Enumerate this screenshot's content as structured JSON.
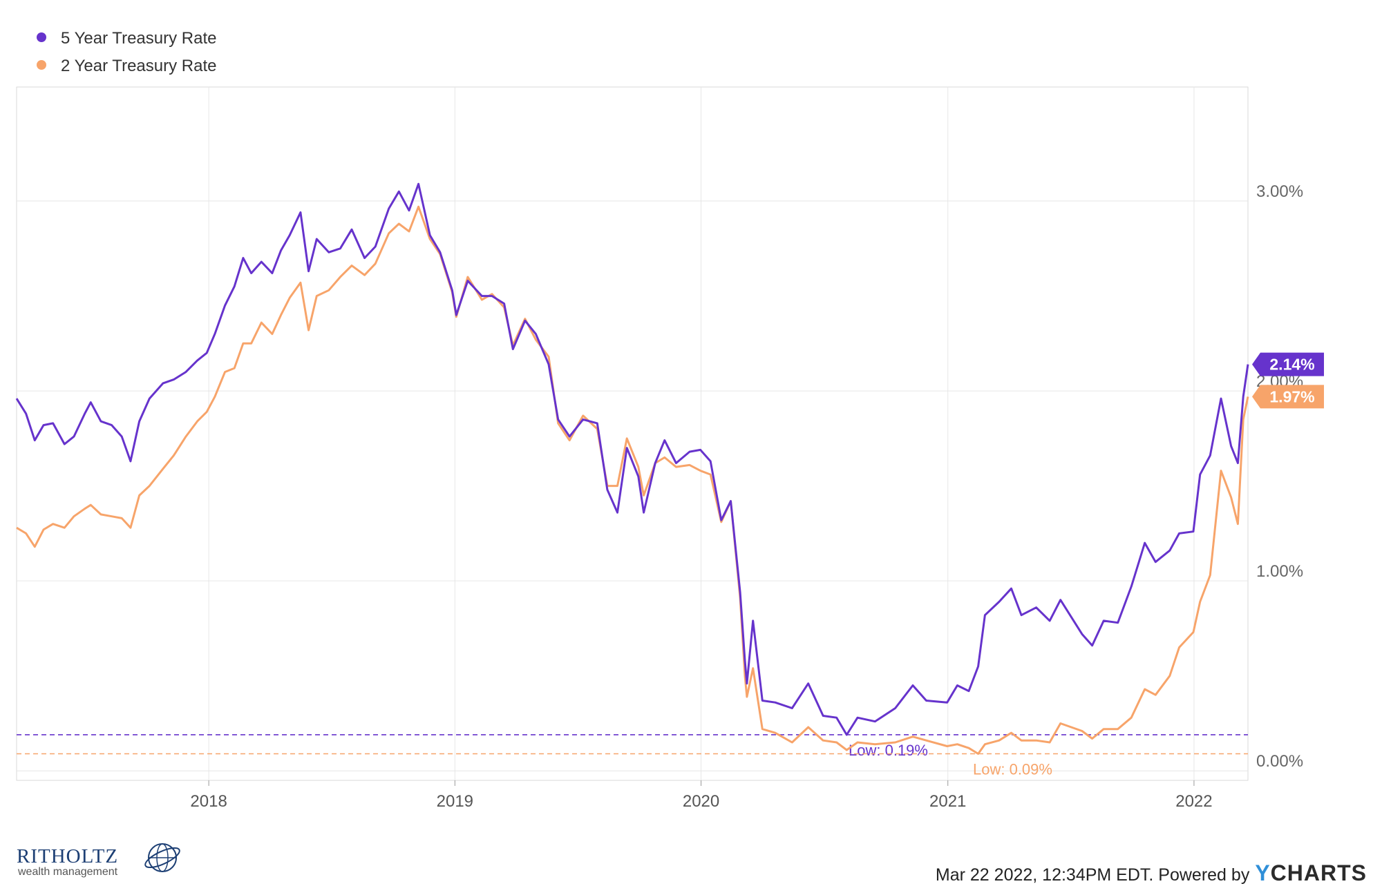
{
  "chart_data": {
    "type": "line",
    "legend_position": "top-left",
    "grid": true,
    "xlim": [
      "2017-03-22",
      "2022-03-22"
    ],
    "ylim": [
      -0.05,
      3.6
    ],
    "y_ticks": [
      {
        "value": 0,
        "label": "0.00%"
      },
      {
        "value": 1,
        "label": "1.00%"
      },
      {
        "value": 2,
        "label": "2.00%"
      },
      {
        "value": 3,
        "label": "3.00%"
      }
    ],
    "x_ticks": [
      {
        "value": "2018-01-01",
        "label": "2018"
      },
      {
        "value": "2019-01-01",
        "label": "2019"
      },
      {
        "value": "2020-01-01",
        "label": "2020"
      },
      {
        "value": "2021-01-01",
        "label": "2021"
      },
      {
        "value": "2022-01-01",
        "label": "2022"
      }
    ],
    "series": [
      {
        "name": "5 Year Treasury Rate",
        "color": "#6633cc",
        "last_value": 2.14,
        "last_label": "2.14%",
        "low_value": 0.19,
        "low_label": "Low: 0.19%",
        "points": [
          [
            "2017-03-22",
            1.96
          ],
          [
            "2017-04-05",
            1.88
          ],
          [
            "2017-04-18",
            1.74
          ],
          [
            "2017-05-01",
            1.82
          ],
          [
            "2017-05-15",
            1.83
          ],
          [
            "2017-06-01",
            1.72
          ],
          [
            "2017-06-15",
            1.76
          ],
          [
            "2017-07-01",
            1.88
          ],
          [
            "2017-07-10",
            1.94
          ],
          [
            "2017-07-25",
            1.84
          ],
          [
            "2017-08-10",
            1.82
          ],
          [
            "2017-08-25",
            1.76
          ],
          [
            "2017-09-07",
            1.63
          ],
          [
            "2017-09-20",
            1.84
          ],
          [
            "2017-10-05",
            1.96
          ],
          [
            "2017-10-25",
            2.04
          ],
          [
            "2017-11-10",
            2.06
          ],
          [
            "2017-11-28",
            2.1
          ],
          [
            "2017-12-15",
            2.16
          ],
          [
            "2017-12-29",
            2.2
          ],
          [
            "2018-01-10",
            2.3
          ],
          [
            "2018-01-25",
            2.45
          ],
          [
            "2018-02-08",
            2.55
          ],
          [
            "2018-02-21",
            2.7
          ],
          [
            "2018-03-05",
            2.62
          ],
          [
            "2018-03-20",
            2.68
          ],
          [
            "2018-04-05",
            2.62
          ],
          [
            "2018-04-18",
            2.74
          ],
          [
            "2018-05-01",
            2.82
          ],
          [
            "2018-05-17",
            2.94
          ],
          [
            "2018-05-29",
            2.63
          ],
          [
            "2018-06-10",
            2.8
          ],
          [
            "2018-06-28",
            2.73
          ],
          [
            "2018-07-15",
            2.75
          ],
          [
            "2018-08-01",
            2.85
          ],
          [
            "2018-08-20",
            2.7
          ],
          [
            "2018-09-05",
            2.76
          ],
          [
            "2018-09-25",
            2.96
          ],
          [
            "2018-10-10",
            3.05
          ],
          [
            "2018-10-25",
            2.95
          ],
          [
            "2018-11-08",
            3.09
          ],
          [
            "2018-11-25",
            2.82
          ],
          [
            "2018-12-10",
            2.73
          ],
          [
            "2018-12-28",
            2.53
          ],
          [
            "2019-01-03",
            2.4
          ],
          [
            "2019-01-20",
            2.58
          ],
          [
            "2019-02-10",
            2.5
          ],
          [
            "2019-02-25",
            2.5
          ],
          [
            "2019-03-15",
            2.46
          ],
          [
            "2019-03-28",
            2.22
          ],
          [
            "2019-04-15",
            2.37
          ],
          [
            "2019-05-01",
            2.3
          ],
          [
            "2019-05-20",
            2.14
          ],
          [
            "2019-06-03",
            1.85
          ],
          [
            "2019-06-20",
            1.76
          ],
          [
            "2019-07-10",
            1.85
          ],
          [
            "2019-07-31",
            1.83
          ],
          [
            "2019-08-15",
            1.48
          ],
          [
            "2019-08-30",
            1.36
          ],
          [
            "2019-09-13",
            1.7
          ],
          [
            "2019-09-30",
            1.55
          ],
          [
            "2019-10-08",
            1.36
          ],
          [
            "2019-10-25",
            1.62
          ],
          [
            "2019-11-08",
            1.74
          ],
          [
            "2019-11-25",
            1.62
          ],
          [
            "2019-12-15",
            1.68
          ],
          [
            "2019-12-31",
            1.69
          ],
          [
            "2020-01-15",
            1.63
          ],
          [
            "2020-01-31",
            1.32
          ],
          [
            "2020-02-14",
            1.42
          ],
          [
            "2020-02-28",
            0.94
          ],
          [
            "2020-03-06",
            0.58
          ],
          [
            "2020-03-09",
            0.46
          ],
          [
            "2020-03-18",
            0.79
          ],
          [
            "2020-04-01",
            0.37
          ],
          [
            "2020-04-20",
            0.36
          ],
          [
            "2020-05-15",
            0.33
          ],
          [
            "2020-06-08",
            0.46
          ],
          [
            "2020-06-30",
            0.29
          ],
          [
            "2020-07-20",
            0.28
          ],
          [
            "2020-08-04",
            0.19
          ],
          [
            "2020-08-20",
            0.28
          ],
          [
            "2020-09-15",
            0.26
          ],
          [
            "2020-10-15",
            0.33
          ],
          [
            "2020-11-10",
            0.45
          ],
          [
            "2020-11-30",
            0.37
          ],
          [
            "2020-12-31",
            0.36
          ],
          [
            "2021-01-15",
            0.45
          ],
          [
            "2021-02-01",
            0.42
          ],
          [
            "2021-02-15",
            0.55
          ],
          [
            "2021-02-25",
            0.82
          ],
          [
            "2021-03-18",
            0.89
          ],
          [
            "2021-04-05",
            0.96
          ],
          [
            "2021-04-20",
            0.82
          ],
          [
            "2021-05-12",
            0.86
          ],
          [
            "2021-06-01",
            0.79
          ],
          [
            "2021-06-17",
            0.9
          ],
          [
            "2021-07-19",
            0.72
          ],
          [
            "2021-08-03",
            0.66
          ],
          [
            "2021-08-20",
            0.79
          ],
          [
            "2021-09-10",
            0.78
          ],
          [
            "2021-09-30",
            0.97
          ],
          [
            "2021-10-20",
            1.2
          ],
          [
            "2021-11-05",
            1.1
          ],
          [
            "2021-11-26",
            1.16
          ],
          [
            "2021-12-10",
            1.25
          ],
          [
            "2021-12-31",
            1.26
          ],
          [
            "2022-01-10",
            1.56
          ],
          [
            "2022-01-25",
            1.66
          ],
          [
            "2022-02-10",
            1.96
          ],
          [
            "2022-02-25",
            1.71
          ],
          [
            "2022-03-07",
            1.62
          ],
          [
            "2022-03-15",
            1.97
          ],
          [
            "2022-03-22",
            2.14
          ]
        ]
      },
      {
        "name": "2 Year Treasury Rate",
        "color": "#f7a46a",
        "last_value": 1.97,
        "last_label": "1.97%",
        "low_value": 0.09,
        "low_label": "Low: 0.09%",
        "points": [
          [
            "2017-03-22",
            1.28
          ],
          [
            "2017-04-05",
            1.25
          ],
          [
            "2017-04-18",
            1.18
          ],
          [
            "2017-05-01",
            1.27
          ],
          [
            "2017-05-15",
            1.3
          ],
          [
            "2017-06-01",
            1.28
          ],
          [
            "2017-06-15",
            1.34
          ],
          [
            "2017-07-01",
            1.38
          ],
          [
            "2017-07-10",
            1.4
          ],
          [
            "2017-07-25",
            1.35
          ],
          [
            "2017-08-10",
            1.34
          ],
          [
            "2017-08-25",
            1.33
          ],
          [
            "2017-09-07",
            1.28
          ],
          [
            "2017-09-20",
            1.45
          ],
          [
            "2017-10-05",
            1.5
          ],
          [
            "2017-10-25",
            1.59
          ],
          [
            "2017-11-10",
            1.66
          ],
          [
            "2017-11-28",
            1.76
          ],
          [
            "2017-12-15",
            1.84
          ],
          [
            "2017-12-29",
            1.89
          ],
          [
            "2018-01-10",
            1.97
          ],
          [
            "2018-01-25",
            2.1
          ],
          [
            "2018-02-08",
            2.12
          ],
          [
            "2018-02-21",
            2.25
          ],
          [
            "2018-03-05",
            2.25
          ],
          [
            "2018-03-20",
            2.36
          ],
          [
            "2018-04-05",
            2.3
          ],
          [
            "2018-04-18",
            2.4
          ],
          [
            "2018-05-01",
            2.49
          ],
          [
            "2018-05-17",
            2.57
          ],
          [
            "2018-05-29",
            2.32
          ],
          [
            "2018-06-10",
            2.5
          ],
          [
            "2018-06-28",
            2.53
          ],
          [
            "2018-07-15",
            2.6
          ],
          [
            "2018-08-01",
            2.66
          ],
          [
            "2018-08-20",
            2.61
          ],
          [
            "2018-09-05",
            2.67
          ],
          [
            "2018-09-25",
            2.83
          ],
          [
            "2018-10-10",
            2.88
          ],
          [
            "2018-10-25",
            2.84
          ],
          [
            "2018-11-08",
            2.97
          ],
          [
            "2018-11-25",
            2.8
          ],
          [
            "2018-12-10",
            2.72
          ],
          [
            "2018-12-28",
            2.52
          ],
          [
            "2019-01-03",
            2.39
          ],
          [
            "2019-01-20",
            2.6
          ],
          [
            "2019-02-10",
            2.48
          ],
          [
            "2019-02-25",
            2.51
          ],
          [
            "2019-03-15",
            2.44
          ],
          [
            "2019-03-28",
            2.24
          ],
          [
            "2019-04-15",
            2.38
          ],
          [
            "2019-05-01",
            2.27
          ],
          [
            "2019-05-20",
            2.18
          ],
          [
            "2019-06-03",
            1.83
          ],
          [
            "2019-06-20",
            1.74
          ],
          [
            "2019-07-10",
            1.87
          ],
          [
            "2019-07-31",
            1.8
          ],
          [
            "2019-08-15",
            1.5
          ],
          [
            "2019-08-30",
            1.5
          ],
          [
            "2019-09-13",
            1.75
          ],
          [
            "2019-09-30",
            1.6
          ],
          [
            "2019-10-08",
            1.45
          ],
          [
            "2019-10-25",
            1.62
          ],
          [
            "2019-11-08",
            1.65
          ],
          [
            "2019-11-25",
            1.6
          ],
          [
            "2019-12-15",
            1.61
          ],
          [
            "2019-12-31",
            1.58
          ],
          [
            "2020-01-15",
            1.56
          ],
          [
            "2020-01-31",
            1.31
          ],
          [
            "2020-02-14",
            1.42
          ],
          [
            "2020-02-28",
            0.91
          ],
          [
            "2020-03-06",
            0.5
          ],
          [
            "2020-03-09",
            0.39
          ],
          [
            "2020-03-18",
            0.54
          ],
          [
            "2020-04-01",
            0.22
          ],
          [
            "2020-04-20",
            0.2
          ],
          [
            "2020-05-15",
            0.15
          ],
          [
            "2020-06-08",
            0.23
          ],
          [
            "2020-06-30",
            0.16
          ],
          [
            "2020-07-20",
            0.15
          ],
          [
            "2020-08-04",
            0.11
          ],
          [
            "2020-08-20",
            0.15
          ],
          [
            "2020-09-15",
            0.14
          ],
          [
            "2020-10-15",
            0.15
          ],
          [
            "2020-11-10",
            0.18
          ],
          [
            "2020-11-30",
            0.16
          ],
          [
            "2020-12-31",
            0.13
          ],
          [
            "2021-01-15",
            0.14
          ],
          [
            "2021-02-01",
            0.12
          ],
          [
            "2021-02-15",
            0.09
          ],
          [
            "2021-02-25",
            0.14
          ],
          [
            "2021-03-18",
            0.16
          ],
          [
            "2021-04-05",
            0.2
          ],
          [
            "2021-04-20",
            0.16
          ],
          [
            "2021-05-12",
            0.16
          ],
          [
            "2021-06-01",
            0.15
          ],
          [
            "2021-06-17",
            0.25
          ],
          [
            "2021-07-19",
            0.21
          ],
          [
            "2021-08-03",
            0.17
          ],
          [
            "2021-08-20",
            0.22
          ],
          [
            "2021-09-10",
            0.22
          ],
          [
            "2021-09-30",
            0.28
          ],
          [
            "2021-10-20",
            0.43
          ],
          [
            "2021-11-05",
            0.4
          ],
          [
            "2021-11-26",
            0.5
          ],
          [
            "2021-12-10",
            0.65
          ],
          [
            "2021-12-31",
            0.73
          ],
          [
            "2022-01-10",
            0.89
          ],
          [
            "2022-01-25",
            1.03
          ],
          [
            "2022-02-10",
            1.58
          ],
          [
            "2022-02-25",
            1.44
          ],
          [
            "2022-03-07",
            1.3
          ],
          [
            "2022-03-15",
            1.85
          ],
          [
            "2022-03-22",
            1.97
          ]
        ]
      }
    ]
  },
  "footer": {
    "logo_name": "RITHOLTZ",
    "logo_sub": "wealth management",
    "timestamp": "Mar 22 2022, 12:34PM EDT. Powered by",
    "ycharts_y": "Y",
    "ycharts_rest": "CHARTS"
  }
}
